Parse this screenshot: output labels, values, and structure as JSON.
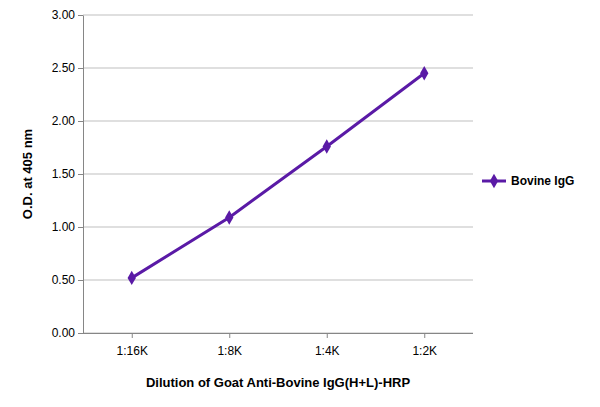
{
  "chart_data": {
    "type": "line",
    "x_label": "Dilution of Goat Anti-Bovine IgG(H+L)-HRP",
    "y_label": "O.D. at 405 nm",
    "categories": [
      "1:16K",
      "1:8K",
      "1:4K",
      "1:2K"
    ],
    "series": [
      {
        "name": "Bovine IgG",
        "color": "#5a1aa6",
        "values": [
          0.52,
          1.09,
          1.76,
          2.45
        ],
        "marker": "diamond",
        "line_style": "solid"
      }
    ],
    "ylim": [
      0,
      3
    ],
    "yticks": [
      {
        "value": 0,
        "label": "0.00"
      },
      {
        "value": 0.5,
        "label": "0.50"
      },
      {
        "value": 1,
        "label": "1.00"
      },
      {
        "value": 1.5,
        "label": "1.50"
      },
      {
        "value": 2,
        "label": "2.00"
      },
      {
        "value": 2.5,
        "label": "2.50"
      },
      {
        "value": 3,
        "label": "3.00"
      }
    ],
    "grid": true,
    "legend": "right"
  }
}
